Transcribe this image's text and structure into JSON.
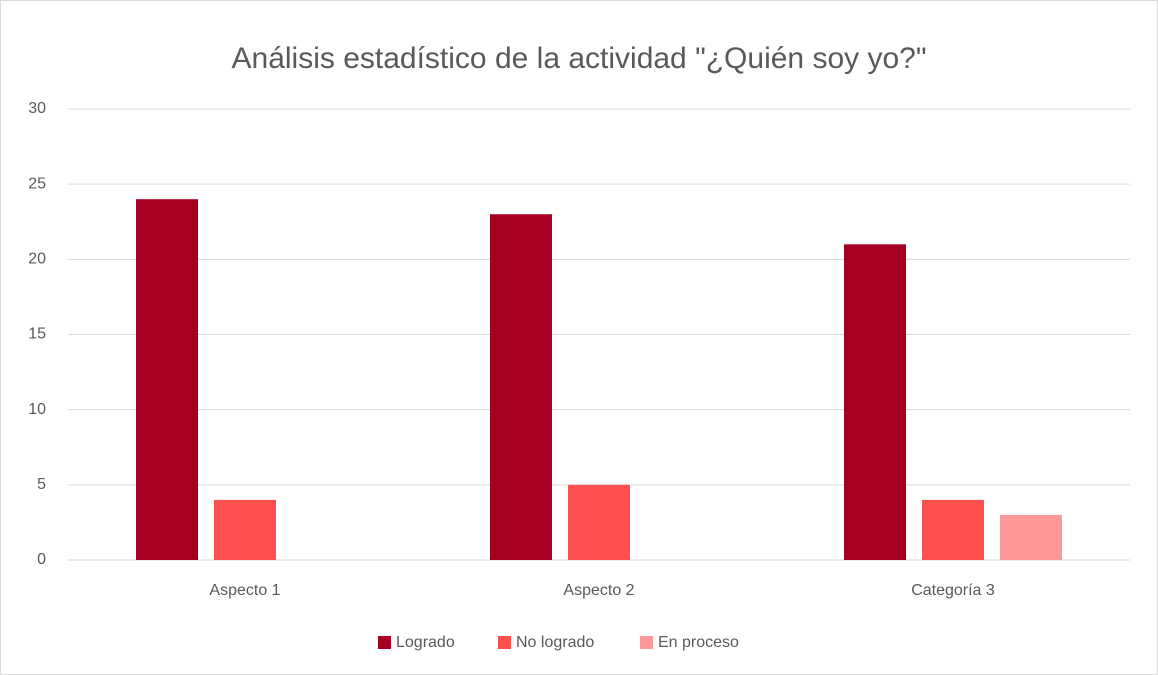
{
  "chart_data": {
    "type": "bar",
    "title": "Análisis estadístico de la actividad \"¿Quién soy yo?\"",
    "categories": [
      "Aspecto 1",
      "Aspecto 2",
      "Categoría 3"
    ],
    "series": [
      {
        "name": "Logrado",
        "color": "#a50021",
        "values": [
          24,
          23,
          21
        ]
      },
      {
        "name": "No logrado",
        "color": "#ff5050",
        "values": [
          4,
          5,
          4
        ]
      },
      {
        "name": "En proceso",
        "color": "#ff9999",
        "values": [
          null,
          null,
          3
        ]
      }
    ],
    "ylim": [
      0,
      30
    ],
    "yticks": [
      0,
      5,
      10,
      15,
      20,
      25,
      30
    ],
    "grid": true,
    "legend": "bottom"
  }
}
